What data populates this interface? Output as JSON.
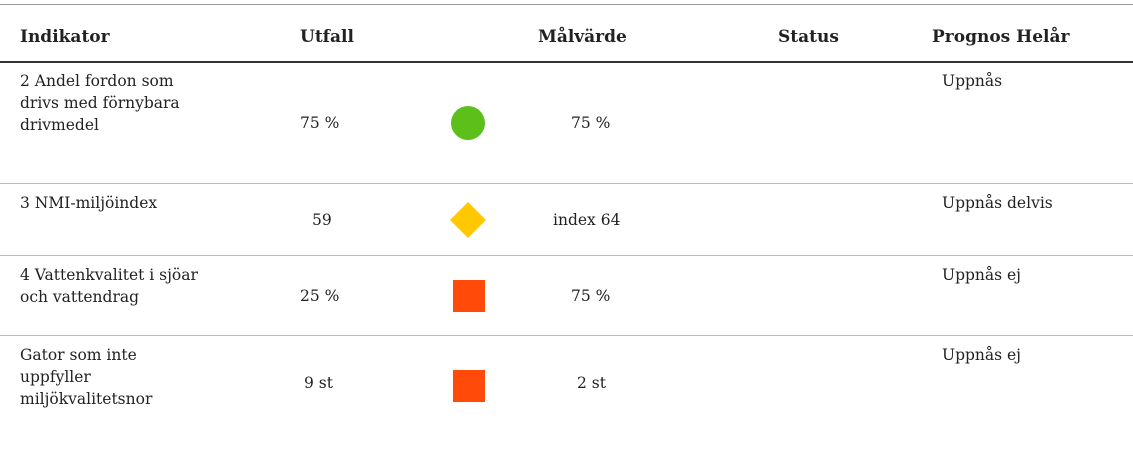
{
  "table": {
    "header": [
      "Indikator",
      "Utfall",
      "Målvärde",
      "Status",
      "Prognos Helår"
    ],
    "rows": [
      [
        "2 Andel fordon som drivs med förnybara drivmedel",
        "75 %",
        "75 %",
        "Uppnås"
      ],
      [
        "3 NMI-miljöindex",
        "59",
        "index 64",
        "Uppnås delvis"
      ],
      [
        "4 Vattenkvalitet i sjöar och vattendrag",
        "25 %",
        "75 %",
        "Uppnås ej"
      ],
      [
        "Gator som inte uppfyller miljökvalitetsnor",
        "9 st",
        "2 st",
        "Uppnås ej"
      ]
    ]
  }
}
